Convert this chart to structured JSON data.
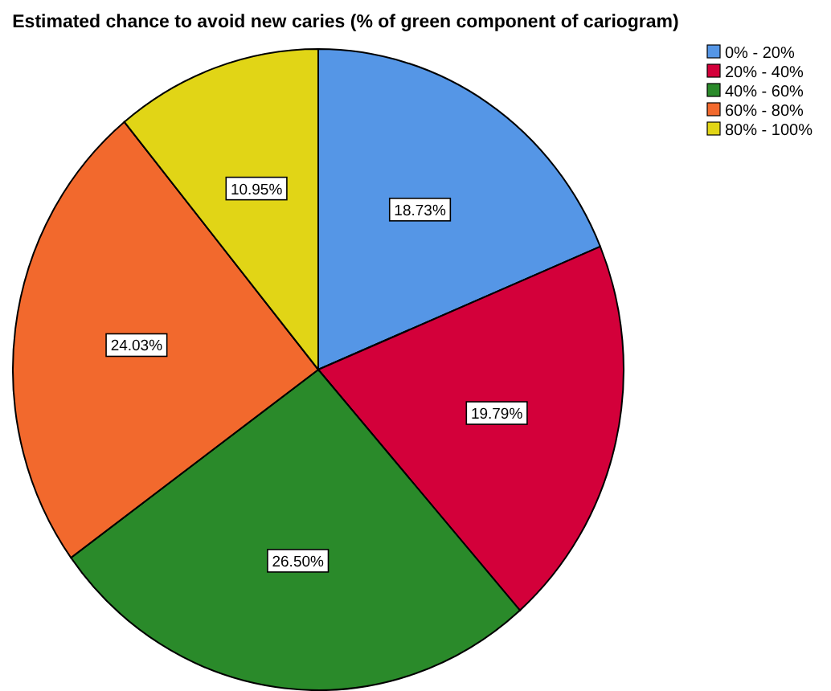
{
  "chart_data": {
    "type": "pie",
    "title": "Estimated chance to avoid new caries (% of green component of cariogram)",
    "categories": [
      "0% - 20%",
      "20% - 40%",
      "40% - 60%",
      "60% - 80%",
      "80% - 100%"
    ],
    "values": [
      18.73,
      19.79,
      26.5,
      24.03,
      10.95
    ],
    "value_labels": [
      "18.73%",
      "19.79%",
      "26.50%",
      "24.03%",
      "10.95%"
    ],
    "colors": [
      "#5596e6",
      "#d3003a",
      "#2a8a2a",
      "#f2692d",
      "#e1d516"
    ],
    "legend": "top right"
  }
}
